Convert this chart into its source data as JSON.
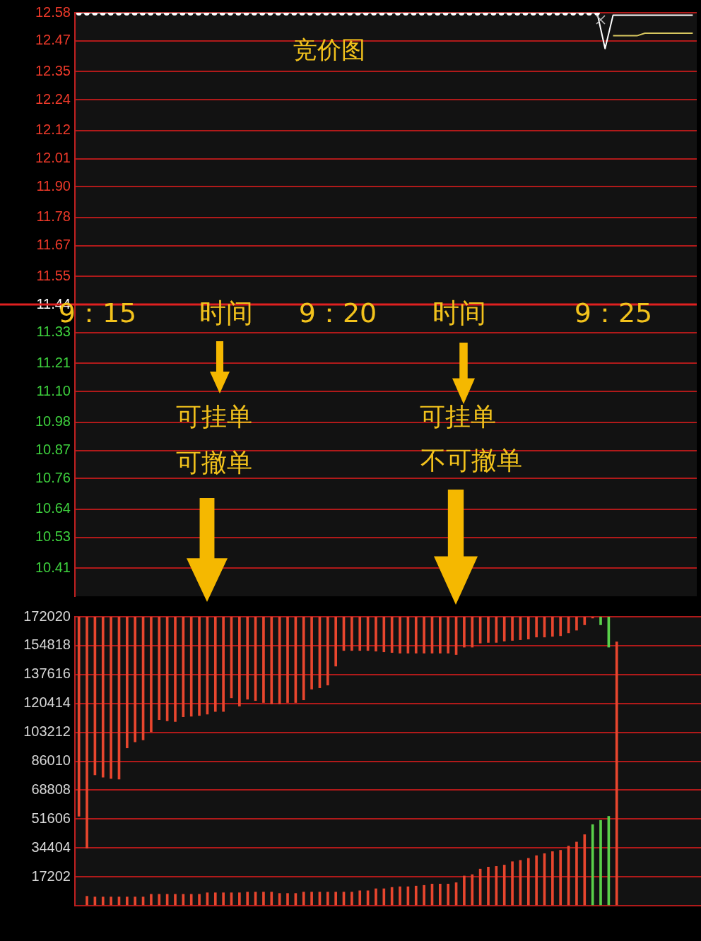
{
  "chart_data": [
    {
      "type": "line",
      "title": "竞价图",
      "categories": [
        null,
        null,
        null,
        null,
        null,
        null,
        null,
        null,
        null,
        null,
        null,
        null,
        null,
        null,
        null,
        null,
        null,
        null,
        null,
        null,
        null,
        null,
        null,
        null,
        null,
        null,
        null,
        null,
        null,
        null,
        null,
        null,
        null,
        null,
        null,
        null,
        null,
        null,
        null,
        null,
        null,
        null,
        null,
        null,
        null,
        null,
        null,
        null,
        null,
        null,
        null,
        null,
        null,
        null,
        null,
        null,
        null,
        null,
        null,
        null,
        null,
        null,
        null,
        null,
        null,
        null,
        null,
        null,
        null,
        null,
        null,
        null,
        null,
        null,
        null,
        null,
        null,
        null
      ],
      "ylim": [
        10.3,
        12.58
      ],
      "yticks": [
        10.41,
        10.53,
        10.64,
        10.76,
        10.87,
        10.98,
        {
          "value": 11.1,
          "label": "11.10"
        },
        11.21,
        11.33,
        11.44,
        11.55,
        11.67,
        11.78,
        {
          "value": 11.9,
          "label": "11.90"
        },
        12.01,
        12.12,
        12.24,
        12.35,
        12.47,
        12.58
      ],
      "grid": "y",
      "tick_labels": "y",
      "legend": false,
      "ref_lines": [
        {
          "axis": "y",
          "value": 11.44,
          "color": "#e02020"
        }
      ],
      "annotations": [
        "9：15",
        "时间",
        "9：20",
        "时间",
        "9：25",
        "可挂单",
        "可撤单",
        "可挂单",
        "不可撤单"
      ],
      "series": [
        {
          "color": "#ffffff",
          "marker": "circle",
          "values": [
            12.58,
            12.58,
            12.58,
            12.58,
            12.58,
            12.58,
            12.58,
            12.58,
            12.58,
            12.58,
            12.58,
            12.58,
            12.58,
            12.58,
            12.58,
            12.58,
            12.58,
            12.58,
            12.58,
            12.58,
            12.58,
            12.58,
            12.58,
            12.58,
            12.58,
            12.58,
            12.58,
            12.58,
            12.58,
            12.58,
            12.58,
            12.58,
            12.58,
            12.58,
            12.58,
            12.58,
            12.58,
            12.58,
            12.58,
            12.58,
            12.58,
            12.58,
            12.58,
            12.58,
            12.58,
            12.58,
            12.58,
            12.58,
            12.58,
            12.58,
            12.58,
            12.58,
            12.58,
            12.58,
            12.58,
            12.58,
            12.58,
            12.58,
            12.58,
            12.58,
            12.58,
            12.58,
            12.58,
            12.58,
            12.58,
            12.58,
            null,
            null,
            null,
            null,
            null,
            null,
            null,
            null,
            null,
            null,
            null,
            null
          ]
        },
        {
          "color": "#ffffff",
          "marker": "none",
          "values": [
            null,
            null,
            null,
            null,
            null,
            null,
            null,
            null,
            null,
            null,
            null,
            null,
            null,
            null,
            null,
            null,
            null,
            null,
            null,
            null,
            null,
            null,
            null,
            null,
            null,
            null,
            null,
            null,
            null,
            null,
            null,
            null,
            null,
            null,
            null,
            null,
            null,
            null,
            null,
            null,
            null,
            null,
            null,
            null,
            null,
            null,
            null,
            null,
            null,
            null,
            null,
            null,
            null,
            null,
            null,
            null,
            null,
            null,
            null,
            null,
            null,
            null,
            null,
            null,
            null,
            12.58,
            12.44,
            12.57,
            12.57,
            12.57,
            12.57,
            12.57,
            12.57,
            12.57,
            12.57,
            12.57,
            12.57,
            12.57
          ]
        },
        {
          "color": "#d8c860",
          "marker": "none",
          "values": [
            null,
            null,
            null,
            null,
            null,
            null,
            null,
            null,
            null,
            null,
            null,
            null,
            null,
            null,
            null,
            null,
            null,
            null,
            null,
            null,
            null,
            null,
            null,
            null,
            null,
            null,
            null,
            null,
            null,
            null,
            null,
            null,
            null,
            null,
            null,
            null,
            null,
            null,
            null,
            null,
            null,
            null,
            null,
            null,
            null,
            null,
            null,
            null,
            null,
            null,
            null,
            null,
            null,
            null,
            null,
            null,
            null,
            null,
            null,
            null,
            null,
            null,
            null,
            null,
            null,
            null,
            null,
            12.49,
            12.49,
            12.49,
            12.49,
            12.5,
            12.5,
            12.5,
            12.5,
            12.5,
            12.5,
            12.5
          ]
        }
      ]
    },
    {
      "type": "bar",
      "categories": [
        null,
        null,
        null,
        null,
        null,
        null,
        null,
        null,
        null,
        null,
        null,
        null,
        null,
        null,
        null,
        null,
        null,
        null,
        null,
        null,
        null,
        null,
        null,
        null,
        null,
        null,
        null,
        null,
        null,
        null,
        null,
        null,
        null,
        null,
        null,
        null,
        null,
        null,
        null,
        null,
        null,
        null,
        null,
        null,
        null,
        null,
        null,
        null,
        null,
        null,
        null,
        null,
        null,
        null,
        null,
        null,
        null,
        null,
        null,
        null,
        null,
        null,
        null,
        null,
        null,
        null,
        null,
        null,
        null,
        null,
        null,
        null,
        null,
        null,
        null,
        null,
        null,
        null
      ],
      "ylim": [
        0,
        172020
      ],
      "yticks": [
        {
          "value": 0,
          "label": null
        },
        17202,
        34404,
        51606,
        68808,
        86010,
        103212,
        120414,
        137616,
        154818,
        172020
      ],
      "grid": "y",
      "tick_labels": "y",
      "legend": false,
      "series": [
        {
          "base": [
            53200,
            34200,
            77800,
            76500,
            75700,
            75300,
            93900,
            97500,
            98700,
            103500,
            110800,
            110000,
            109600,
            112400,
            112800,
            113200,
            114000,
            115600,
            115600,
            123700,
            118800,
            122900,
            122100,
            120900,
            120100,
            120100,
            120900,
            120900,
            122500,
            128900,
            129700,
            131300,
            142600,
            151900,
            151900,
            151900,
            151900,
            151500,
            151100,
            150700,
            150300,
            150300,
            150300,
            150300,
            150300,
            150300,
            150300,
            149500,
            153900,
            153900,
            156300,
            156700,
            156700,
            157500,
            157900,
            158300,
            158700,
            159900,
            159900,
            160300,
            160700,
            162400,
            164000,
            167200,
            171200,
            167200,
            153900,
            null,
            null,
            null,
            null,
            null,
            null,
            null,
            null,
            null,
            null,
            null
          ],
          "values": [
            118800,
            137800,
            94200,
            95500,
            96300,
            96700,
            78100,
            74500,
            73300,
            68500,
            61200,
            62000,
            62400,
            59600,
            59200,
            58800,
            58000,
            56400,
            56400,
            48300,
            53200,
            49100,
            49900,
            51100,
            51900,
            51900,
            51100,
            51100,
            49500,
            43100,
            42300,
            40700,
            29400,
            20100,
            20100,
            20100,
            20100,
            20500,
            20900,
            21300,
            21700,
            21700,
            21700,
            21700,
            21700,
            21700,
            21700,
            22500,
            18100,
            18100,
            15700,
            15300,
            15300,
            14500,
            14100,
            13700,
            13300,
            12100,
            12100,
            11700,
            11300,
            9600,
            8000,
            4800,
            800,
            4800,
            18100,
            null,
            null,
            null,
            null,
            null,
            null,
            null,
            null,
            null,
            null,
            null
          ],
          "colors": [
            "#e8462e",
            "#e8462e",
            "#e8462e",
            "#e8462e",
            "#e8462e",
            "#e8462e",
            "#e8462e",
            "#e8462e",
            "#e8462e",
            "#e8462e",
            "#e8462e",
            "#e8462e",
            "#e8462e",
            "#e8462e",
            "#e8462e",
            "#e8462e",
            "#e8462e",
            "#e8462e",
            "#e8462e",
            "#e8462e",
            "#e8462e",
            "#e8462e",
            "#e8462e",
            "#e8462e",
            "#e8462e",
            "#e8462e",
            "#e8462e",
            "#e8462e",
            "#e8462e",
            "#e8462e",
            "#e8462e",
            "#e8462e",
            "#e8462e",
            "#e8462e",
            "#e8462e",
            "#e8462e",
            "#e8462e",
            "#e8462e",
            "#e8462e",
            "#e8462e",
            "#e8462e",
            "#e8462e",
            "#e8462e",
            "#e8462e",
            "#e8462e",
            "#e8462e",
            "#e8462e",
            "#e8462e",
            "#e8462e",
            "#e8462e",
            "#e8462e",
            "#e8462e",
            "#e8462e",
            "#e8462e",
            "#e8462e",
            "#e8462e",
            "#e8462e",
            "#e8462e",
            "#e8462e",
            "#e8462e",
            "#e8462e",
            "#e8462e",
            "#e8462e",
            "#e8462e",
            "#e8462e",
            "#5ad04a",
            "#5ad04a",
            "#e8462e",
            "#e8462e",
            "#e8462e",
            "#e8462e",
            "#e8462e",
            "#e8462e",
            "#e8462e",
            "#e8462e",
            "#e8462e",
            "#e8462e",
            "#e8462e"
          ]
        },
        {
          "values": [
            null,
            5600,
            5200,
            5200,
            5200,
            5200,
            5200,
            5200,
            5200,
            6800,
            6800,
            6800,
            6800,
            6800,
            6800,
            6800,
            7700,
            7700,
            7700,
            7700,
            7700,
            8100,
            8100,
            8100,
            8100,
            7300,
            7300,
            7300,
            8100,
            8100,
            8100,
            8100,
            8100,
            8100,
            8100,
            8900,
            8900,
            10100,
            10100,
            10900,
            11300,
            11300,
            11700,
            12100,
            12900,
            12900,
            12900,
            13700,
            17700,
            18500,
            21800,
            23000,
            23400,
            24200,
            26200,
            27000,
            28200,
            29800,
            31000,
            32200,
            33000,
            35500,
            37900,
            42300,
            48300,
            50800,
            53200,
            157100,
            null,
            null,
            null,
            null,
            null,
            null,
            null,
            null,
            null,
            null
          ],
          "colors": [
            "#e8462e",
            "#e8462e",
            "#e8462e",
            "#e8462e",
            "#e8462e",
            "#e8462e",
            "#e8462e",
            "#e8462e",
            "#e8462e",
            "#e8462e",
            "#e8462e",
            "#e8462e",
            "#e8462e",
            "#e8462e",
            "#e8462e",
            "#e8462e",
            "#e8462e",
            "#e8462e",
            "#e8462e",
            "#e8462e",
            "#e8462e",
            "#e8462e",
            "#e8462e",
            "#e8462e",
            "#e8462e",
            "#e8462e",
            "#e8462e",
            "#e8462e",
            "#e8462e",
            "#e8462e",
            "#e8462e",
            "#e8462e",
            "#e8462e",
            "#e8462e",
            "#e8462e",
            "#e8462e",
            "#e8462e",
            "#e8462e",
            "#e8462e",
            "#e8462e",
            "#e8462e",
            "#e8462e",
            "#e8462e",
            "#e8462e",
            "#e8462e",
            "#e8462e",
            "#e8462e",
            "#e8462e",
            "#e8462e",
            "#e8462e",
            "#e8462e",
            "#e8462e",
            "#e8462e",
            "#e8462e",
            "#e8462e",
            "#e8462e",
            "#e8462e",
            "#e8462e",
            "#e8462e",
            "#e8462e",
            "#e8462e",
            "#e8462e",
            "#e8462e",
            "#e8462e",
            "#5ad04a",
            "#5ad04a",
            "#5ad04a",
            "#e8462e",
            "#e8462e",
            "#e8462e",
            "#e8462e",
            "#e8462e",
            "#e8462e",
            "#e8462e",
            "#e8462e",
            "#e8462e",
            "#e8462e",
            "#e8462e"
          ]
        }
      ]
    }
  ]
}
